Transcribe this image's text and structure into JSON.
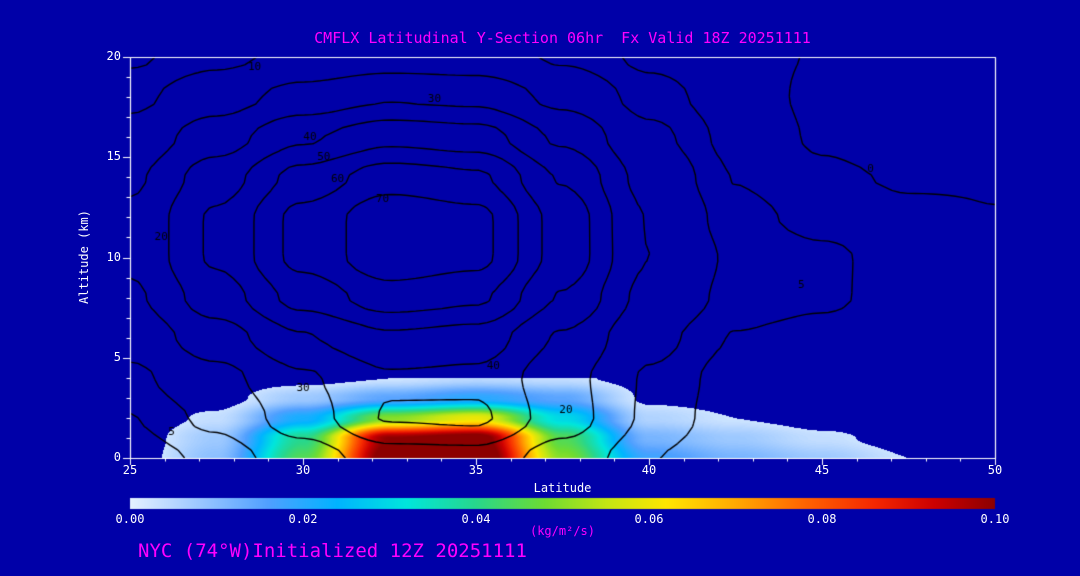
{
  "chart_data": {
    "type": "contour-heatmap-cross-section",
    "title": "CMFLX Latitudinal Y-Section 06hr  Fx Valid 18Z 20251111",
    "xlabel": "Latitude",
    "ylabel": "Altitude (km)",
    "footer": "NYC (74°W)Initialized 12Z 20251111",
    "x_range": [
      25,
      50
    ],
    "y_range": [
      0,
      20
    ],
    "x_ticks": [
      25,
      30,
      35,
      40,
      45,
      50
    ],
    "y_ticks": [
      0,
      5,
      10,
      15,
      20
    ],
    "colors": {
      "background": "#0000a8",
      "accent": "#ff00ff",
      "axis_text": "#ffffff",
      "contour": "#000000"
    },
    "contours": {
      "levels": [
        0,
        5,
        10,
        20,
        30,
        40,
        50,
        60,
        70
      ],
      "grid": {
        "lat": [
          25,
          27.5,
          30,
          32.5,
          35,
          37.5,
          40,
          42.5,
          45,
          47.5,
          50
        ],
        "alt": [
          0,
          2,
          4,
          6,
          8,
          10,
          12,
          14,
          16,
          18,
          20
        ],
        "values": [
          [
            2.3,
            6.2,
            14.9,
            25.4,
            26.2,
            15.4,
            5.2,
            1.1,
            0.2,
            0.1,
            0.05
          ],
          [
            4.8,
            11.7,
            25.4,
            40.8,
            41.7,
            24.8,
            8.7,
            1.9,
            0.3,
            0.1,
            0.05
          ],
          [
            8.3,
            16.9,
            28.7,
            38.8,
            37.8,
            23.4,
            9.2,
            2.6,
            0.8,
            0.2,
            0.05
          ],
          [
            13.3,
            25.5,
            39.2,
            48.2,
            45.7,
            28.9,
            12.3,
            4.7,
            2.8,
            0.9,
            0.1
          ],
          [
            18.4,
            35.1,
            53.6,
            65.4,
            61.8,
            39.3,
            17.0,
            8.0,
            6.1,
            2.1,
            0.2
          ],
          [
            21.7,
            41.3,
            63.0,
            77.0,
            72.8,
            46.2,
            20.0,
            8.8,
            6.2,
            2.1,
            0.2
          ],
          [
            21.7,
            41.3,
            63.0,
            77.0,
            72.8,
            46.2,
            19.6,
            6.8,
            3.1,
            0.9,
            0.1
          ],
          [
            18.4,
            35.1,
            53.6,
            65.4,
            61.8,
            39.2,
            16.5,
            4.8,
            0.8,
            -0.5,
            -0.3
          ],
          [
            13.3,
            25.3,
            38.6,
            47.2,
            44.6,
            28.3,
            11.9,
            3.2,
            -0.6,
            -2.5,
            -1.3
          ],
          [
            8.1,
            15.5,
            23.7,
            28.9,
            27.3,
            17.3,
            7.3,
            1.9,
            -0.9,
            -2.5,
            -1.3
          ],
          [
            4.2,
            8.1,
            12.3,
            15.1,
            14.2,
            9.0,
            3.8,
            1.0,
            -0.2,
            -0.7,
            -0.4
          ]
        ]
      },
      "labels": [
        {
          "value": 10,
          "lat": 28.6,
          "alt": 19.5
        },
        {
          "value": 30,
          "lat": 33.8,
          "alt": 17.9
        },
        {
          "value": 40,
          "lat": 30.2,
          "alt": 16.0
        },
        {
          "value": 50,
          "lat": 30.6,
          "alt": 15.0
        },
        {
          "value": 60,
          "lat": 31.0,
          "alt": 13.9
        },
        {
          "value": 70,
          "lat": 32.3,
          "alt": 12.9
        },
        {
          "value": 20,
          "lat": 25.9,
          "alt": 11.0
        },
        {
          "value": 5,
          "lat": 26.2,
          "alt": 1.3
        },
        {
          "value": 30,
          "lat": 30.0,
          "alt": 3.5
        },
        {
          "value": 40,
          "lat": 35.5,
          "alt": 4.6
        },
        {
          "value": 20,
          "lat": 37.6,
          "alt": 2.4
        },
        {
          "value": 5,
          "lat": 44.4,
          "alt": 8.6
        },
        {
          "value": 0,
          "lat": 46.4,
          "alt": 14.4
        }
      ]
    },
    "fill": {
      "units": "kg/m²/s",
      "min_drawn": 0.003,
      "grid": {
        "lat": [
          25,
          27.5,
          30,
          32.5,
          35,
          37.5,
          40,
          42.5,
          45,
          47.5,
          50
        ],
        "alt": [
          0,
          1,
          2,
          3,
          4
        ],
        "values": [
          [
            0.0,
            0.01,
            0.045,
            0.105,
            0.11,
            0.05,
            0.018,
            0.012,
            0.008,
            0.003,
            0.0
          ],
          [
            0.0,
            0.008,
            0.04,
            0.1,
            0.105,
            0.045,
            0.012,
            0.008,
            0.004,
            0.001,
            0.0
          ],
          [
            0.0,
            0.004,
            0.022,
            0.05,
            0.06,
            0.03,
            0.006,
            0.003,
            0.001,
            0.0,
            0.0
          ],
          [
            0.0,
            0.001,
            0.008,
            0.015,
            0.02,
            0.015,
            0.002,
            0.001,
            0.0,
            0.0,
            0.0
          ],
          [
            0.0,
            0.0,
            0.001,
            0.003,
            0.005,
            0.004,
            0.001,
            0.0,
            0.0,
            0.0,
            0.0
          ]
        ]
      }
    },
    "colorbar": {
      "min": 0,
      "max": 0.1,
      "ticks": [
        0,
        0.02,
        0.04,
        0.06,
        0.08,
        0.1
      ],
      "tick_labels": [
        "0.00",
        "0.02",
        "0.04",
        "0.06",
        "0.08",
        "0.10"
      ],
      "label": "(kg/m²/s)",
      "stops": [
        {
          "t": 0.0,
          "c": "#e6f2ff"
        },
        {
          "t": 0.08,
          "c": "#9cc8ff"
        },
        {
          "t": 0.16,
          "c": "#50a0ff"
        },
        {
          "t": 0.24,
          "c": "#00b4ff"
        },
        {
          "t": 0.32,
          "c": "#00e6dc"
        },
        {
          "t": 0.4,
          "c": "#28d78c"
        },
        {
          "t": 0.48,
          "c": "#6edc32"
        },
        {
          "t": 0.55,
          "c": "#c3e614"
        },
        {
          "t": 0.62,
          "c": "#ffe600"
        },
        {
          "t": 0.7,
          "c": "#ffaa00"
        },
        {
          "t": 0.78,
          "c": "#ff6400"
        },
        {
          "t": 0.86,
          "c": "#f52800"
        },
        {
          "t": 0.93,
          "c": "#cd0000"
        },
        {
          "t": 1.0,
          "c": "#8c0000"
        }
      ]
    }
  }
}
